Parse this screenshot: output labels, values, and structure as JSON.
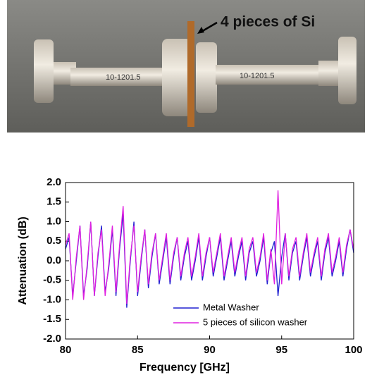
{
  "photo": {
    "annotation": "4 pieces of Si",
    "part_labels": [
      "10-1201.5",
      "10-1201.5"
    ]
  },
  "chart_data": {
    "type": "line",
    "x_label": "Frequency [GHz]",
    "y_label": "Attenuation (dB)",
    "x": [
      80,
      80.25,
      80.5,
      80.75,
      81,
      81.25,
      81.5,
      81.75,
      82,
      82.25,
      82.5,
      82.75,
      83,
      83.25,
      83.5,
      83.75,
      84,
      84.25,
      84.5,
      84.75,
      85,
      85.25,
      85.5,
      85.75,
      86,
      86.25,
      86.5,
      86.75,
      87,
      87.25,
      87.5,
      87.75,
      88,
      88.25,
      88.5,
      88.75,
      89,
      89.25,
      89.5,
      89.75,
      90,
      90.25,
      90.5,
      90.75,
      91,
      91.25,
      91.5,
      91.75,
      92,
      92.25,
      92.5,
      92.75,
      93,
      93.25,
      93.5,
      93.75,
      94,
      94.25,
      94.5,
      94.75,
      95,
      95.25,
      95.5,
      95.75,
      96,
      96.25,
      96.5,
      96.75,
      97,
      97.25,
      97.5,
      97.75,
      98,
      98.25,
      98.5,
      98.75,
      99,
      99.25,
      99.5,
      99.75,
      100
    ],
    "series": [
      {
        "name": "Metal Washer",
        "color": "#2020d0",
        "values": [
          0.3,
          0.6,
          -0.9,
          0.0,
          0.9,
          -0.9,
          -0.2,
          1.0,
          -0.9,
          0.1,
          0.9,
          -0.8,
          -0.2,
          0.8,
          -0.9,
          0.3,
          1.2,
          -1.2,
          0.0,
          1.0,
          -0.9,
          0.0,
          0.8,
          -0.7,
          0.1,
          0.7,
          -0.6,
          0.0,
          0.6,
          -0.6,
          0.1,
          0.6,
          -0.5,
          0.1,
          0.5,
          -0.5,
          0.0,
          0.6,
          -0.5,
          0.1,
          0.6,
          -0.4,
          0.1,
          0.6,
          -0.5,
          0.0,
          0.5,
          -0.4,
          0.1,
          0.5,
          -0.5,
          0.2,
          0.5,
          -0.4,
          0.0,
          0.6,
          -0.6,
          0.2,
          0.5,
          -0.9,
          0.1,
          0.7,
          -0.5,
          0.2,
          0.5,
          -0.5,
          0.1,
          0.6,
          -0.4,
          0.1,
          0.5,
          -0.5,
          0.2,
          0.6,
          -0.4,
          0.0,
          0.5,
          -0.4,
          0.3,
          0.8,
          0.2
        ]
      },
      {
        "name": "5 pieces of silicon washer",
        "color": "#e020e0",
        "values": [
          0.4,
          0.7,
          -1.0,
          0.1,
          0.9,
          -1.0,
          -0.1,
          1.0,
          -0.9,
          0.2,
          0.8,
          -0.9,
          -0.1,
          0.9,
          -0.8,
          0.4,
          1.4,
          -1.1,
          0.1,
          0.9,
          -0.8,
          0.1,
          0.8,
          -0.6,
          0.2,
          0.7,
          -0.5,
          0.1,
          0.7,
          -0.5,
          0.2,
          0.6,
          -0.4,
          0.2,
          0.6,
          -0.4,
          0.1,
          0.7,
          -0.4,
          0.2,
          0.6,
          -0.3,
          0.2,
          0.7,
          -0.4,
          0.1,
          0.6,
          -0.3,
          0.2,
          0.6,
          -0.4,
          0.3,
          0.6,
          -0.3,
          0.1,
          0.7,
          -0.5,
          0.3,
          -0.6,
          1.8,
          -0.6,
          0.7,
          -0.4,
          0.3,
          0.6,
          -0.4,
          0.2,
          0.7,
          -0.3,
          0.2,
          0.6,
          -0.4,
          0.3,
          0.7,
          -0.3,
          0.1,
          0.6,
          -0.3,
          0.4,
          0.8,
          0.3
        ]
      }
    ],
    "xlim": [
      80,
      100
    ],
    "xticks": [
      80,
      85,
      90,
      95,
      100
    ],
    "ylim": [
      -2,
      2
    ],
    "yticks": [
      {
        "value": -2,
        "label": "-2.0"
      },
      {
        "value": -1.5,
        "label": "-1.5"
      },
      {
        "value": -1,
        "label": "-1.0"
      },
      {
        "value": -0.5,
        "label": "-0.5"
      },
      {
        "value": 0,
        "label": "0.0"
      },
      {
        "value": 0.5,
        "label": "0.5"
      },
      {
        "value": 1,
        "label": "1.0"
      },
      {
        "value": 1.5,
        "label": "1.5"
      },
      {
        "value": 2,
        "label": "2.0"
      }
    ],
    "legend": "lower right",
    "grid": false
  }
}
